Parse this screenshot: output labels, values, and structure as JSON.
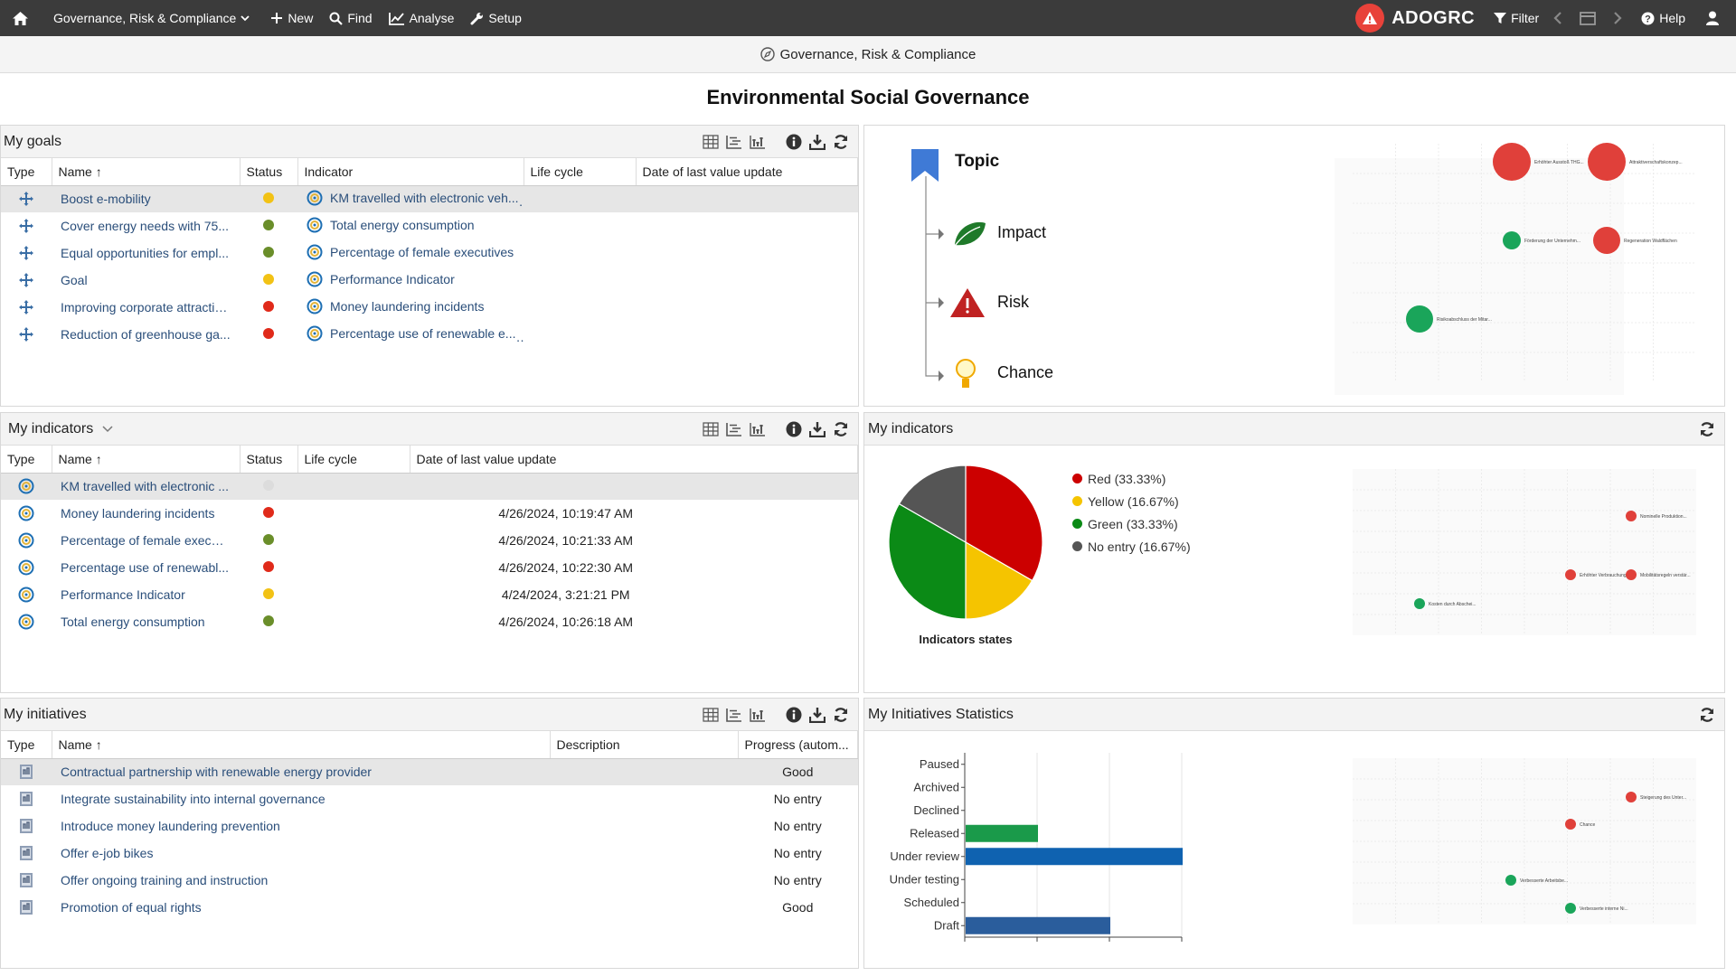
{
  "topbar": {
    "menu_label": "Governance, Risk & Compliance",
    "new_label": "New",
    "find_label": "Find",
    "analyse_label": "Analyse",
    "setup_label": "Setup",
    "brand": "ADOGRC",
    "filter_label": "Filter",
    "help_label": "Help"
  },
  "breadcrumb": "Governance, Risk & Compliance",
  "page_title": "Environmental Social Governance",
  "goals": {
    "title": "My goals",
    "columns": [
      "Type",
      "Name ↑",
      "Status",
      "Indicator",
      "Life cycle",
      "Date of last value update"
    ],
    "rows": [
      {
        "name": "Boost e-mobility",
        "status": "#f2c215",
        "indicator": "KM travelled with electronic veh..."
      },
      {
        "name": "Cover energy needs with 75...",
        "status": "#6a8e2a",
        "indicator": "Total energy consumption"
      },
      {
        "name": "Equal opportunities for empl...",
        "status": "#6a8e2a",
        "indicator": "Percentage of female executives"
      },
      {
        "name": "Goal",
        "status": "#f2c215",
        "indicator": "Performance Indicator"
      },
      {
        "name": "Improving corporate attractiv...",
        "status": "#e02a1a",
        "indicator": "Money laundering incidents"
      },
      {
        "name": "Reduction of greenhouse ga...",
        "status": "#e02a1a",
        "indicator": "Percentage use of renewable e..."
      }
    ]
  },
  "topic_panel": {
    "root": "Topic",
    "children": [
      {
        "label": "Impact",
        "icon": "leaf-icon"
      },
      {
        "label": "Risk",
        "icon": "warning-icon"
      },
      {
        "label": "Chance",
        "icon": "lightbulb-icon"
      }
    ],
    "bubbles": [
      {
        "color": "#e0403a",
        "label": "Erhöhter Ausstoß THG..."
      },
      {
        "color": "#e0403a",
        "label": "Attraktiverschaftskonzep..."
      },
      {
        "color": "#1aa55a",
        "label": "Förderung der Unternehm..."
      },
      {
        "color": "#e0403a",
        "label": "Regeneration Waldflächen"
      },
      {
        "color": "#1aa55a",
        "label": "Risikoabschluss der Mitar..."
      }
    ]
  },
  "indicators": {
    "title": "My indicators",
    "columns": [
      "Type",
      "Name ↑",
      "Status",
      "Life cycle",
      "Date of last value update"
    ],
    "rows": [
      {
        "name": "KM travelled with electronic ...",
        "status": "#dcdcdc",
        "date": ""
      },
      {
        "name": "Money laundering incidents",
        "status": "#e02a1a",
        "date": "4/26/2024, 10:19:47 AM"
      },
      {
        "name": "Percentage of female execut...",
        "status": "#6a8e2a",
        "date": "4/26/2024, 10:21:33 AM"
      },
      {
        "name": "Percentage use of renewabl...",
        "status": "#e02a1a",
        "date": "4/26/2024, 10:22:30 AM"
      },
      {
        "name": "Performance Indicator",
        "status": "#f2c215",
        "date": "4/24/2024, 3:21:21 PM"
      },
      {
        "name": "Total energy consumption",
        "status": "#6a8e2a",
        "date": "4/26/2024, 10:26:18 AM"
      }
    ]
  },
  "indicator_states": {
    "title": "My indicators",
    "caption": "Indicators states",
    "legend": [
      {
        "label": "Red (33.33%)",
        "color": "#cc0000"
      },
      {
        "label": "Yellow (16.67%)",
        "color": "#f5c400"
      },
      {
        "label": "Green (33.33%)",
        "color": "#0b8a16"
      },
      {
        "label": "No entry (16.67%)",
        "color": "#555555"
      }
    ],
    "bubbles": [
      {
        "color": "#e0403a",
        "label": "Nominelle Produktion..."
      },
      {
        "color": "#e0403a",
        "label": "Erhöhter Verbrauchungs..."
      },
      {
        "color": "#e0403a",
        "label": "Mobilitätsregeln verstär..."
      },
      {
        "color": "#1aa55a",
        "label": "Kosten durch Abschei..."
      }
    ]
  },
  "chart_data": {
    "type": "pie",
    "title": "Indicators states",
    "labels": [
      "Red",
      "Yellow",
      "Green",
      "No entry"
    ],
    "values": [
      33.33,
      16.67,
      33.33,
      16.67
    ],
    "colors": [
      "#cc0000",
      "#f5c400",
      "#0b8a16",
      "#555555"
    ]
  },
  "initiatives": {
    "title": "My initiatives",
    "columns": [
      "Type",
      "Name ↑",
      "Description",
      "Progress (autom..."
    ],
    "rows": [
      {
        "name": "Contractual partnership with renewable energy provider",
        "progress": "Good"
      },
      {
        "name": "Integrate sustainability into internal governance",
        "progress": "No entry"
      },
      {
        "name": "Introduce money laundering prevention",
        "progress": "No entry"
      },
      {
        "name": "Offer e-job bikes",
        "progress": "No entry"
      },
      {
        "name": "Offer ongoing training and instruction",
        "progress": "No entry"
      },
      {
        "name": "Promotion of equal rights",
        "progress": "Good"
      }
    ]
  },
  "initiative_stats": {
    "title": "My Initiatives Statistics",
    "chart": {
      "type": "bar",
      "categories": [
        "Paused",
        "Archived",
        "Declined",
        "Released",
        "Under review",
        "Under testing",
        "Scheduled",
        "Draft"
      ],
      "values": [
        0,
        0,
        0,
        1,
        3,
        0,
        0,
        2
      ],
      "colors": [
        "#1a9a4a",
        "#1a9a4a",
        "#1a9a4a",
        "#1a9a4a",
        "#0f62b0",
        "#0f62b0",
        "#0f62b0",
        "#2a5d9c"
      ],
      "xlim": [
        0,
        3
      ]
    },
    "bubbles": [
      {
        "color": "#e0403a",
        "label": "Steigerung des Unter..."
      },
      {
        "color": "#e0403a",
        "label": "Chance"
      },
      {
        "color": "#1aa55a",
        "label": "Verbesserte Arbeitsbe..."
      },
      {
        "color": "#1aa55a",
        "label": "Verbesserte interne Ni..."
      }
    ]
  }
}
